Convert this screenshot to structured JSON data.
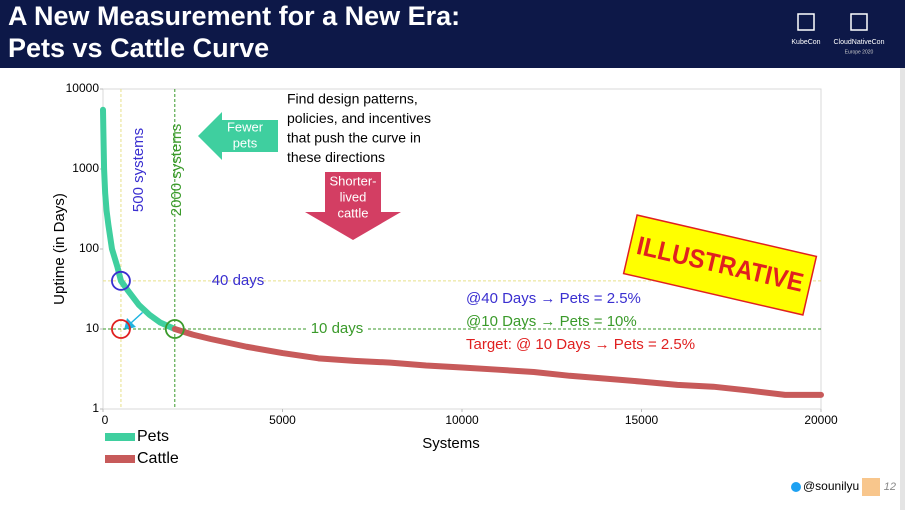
{
  "header": {
    "title_lines": [
      "A New Measurement for a New Era:",
      "Pets vs Cattle Curve"
    ],
    "logos": [
      "KubeCon",
      "CloudNativeCon",
      "Europe 2020"
    ]
  },
  "chart_data": {
    "type": "line",
    "x_label": "Systems",
    "y_label": "Uptime (in Days)",
    "xlim": [
      0,
      20000
    ],
    "xticks": [
      0,
      5000,
      10000,
      15000,
      20000
    ],
    "ylim": [
      1,
      10000
    ],
    "yticks": [
      1,
      10,
      100,
      1000,
      10000
    ],
    "y_log_scale": true,
    "grid": false,
    "series": [
      {
        "name": "Pets",
        "color": "#3fcf9f",
        "x": [
          0,
          10,
          30,
          60,
          100,
          150,
          250,
          400,
          500,
          700,
          1000,
          1300,
          1600,
          2000
        ],
        "values": [
          5500,
          3000,
          1000,
          500,
          300,
          200,
          100,
          60,
          40,
          30,
          20,
          15,
          12,
          10
        ]
      },
      {
        "name": "Cattle",
        "color": "#c75a5a",
        "x": [
          2000,
          2500,
          3000,
          4000,
          5000,
          6000,
          7000,
          8000,
          9000,
          10000,
          11000,
          12000,
          13000,
          14000,
          15000,
          16000,
          17000,
          18000,
          19000,
          20000
        ],
        "values": [
          10,
          8.5,
          7.5,
          6,
          5,
          4.3,
          4,
          3.8,
          3.5,
          3.3,
          3.1,
          2.9,
          2.6,
          2.4,
          2.2,
          2,
          1.9,
          1.7,
          1.5,
          1.5
        ]
      }
    ],
    "reference_lines": [
      {
        "axis": "x",
        "value": 500,
        "label": "500 systems",
        "color": "#e8e08a",
        "label_color": "#3a2fd0"
      },
      {
        "axis": "x",
        "value": 2000,
        "label": "2000 systems",
        "color": "#3a9a2a",
        "label_color": "#3a9a2a"
      },
      {
        "axis": "y",
        "value": 40,
        "label": "40 days",
        "color": "#e8e08a",
        "label_color": "#3a2fd0"
      },
      {
        "axis": "y",
        "value": 10,
        "label": "10 days",
        "color": "#3a9a2a",
        "label_color": "#3a9a2a"
      }
    ],
    "markers": [
      {
        "x": 500,
        "y": 40,
        "color": "#3a2fd0"
      },
      {
        "x": 500,
        "y": 10,
        "color": "#e02020"
      },
      {
        "x": 2000,
        "y": 10,
        "color": "#3a9a2a"
      }
    ],
    "legend": "bottom-left"
  },
  "annotations": {
    "callout": [
      "Find design patterns,",
      "policies, and incentives",
      "that push the curve in",
      "these directions"
    ],
    "fewer_pets": [
      "Fewer",
      "pets"
    ],
    "shorter_lived": [
      "Shorter-",
      "lived",
      "cattle"
    ],
    "stamp": "ILLUSTRATIVE",
    "notes": [
      {
        "text": "@40 Days → Pets = 2.5%",
        "color": "#3a2fd0"
      },
      {
        "text": "@10 Days → Pets = 10%",
        "color": "#3a9a2a"
      },
      {
        "text": "Target: @ 10 Days → Pets = 2.5%",
        "color": "#e02020"
      }
    ]
  },
  "footer": {
    "handle": "@sounilyu",
    "page": "12"
  }
}
